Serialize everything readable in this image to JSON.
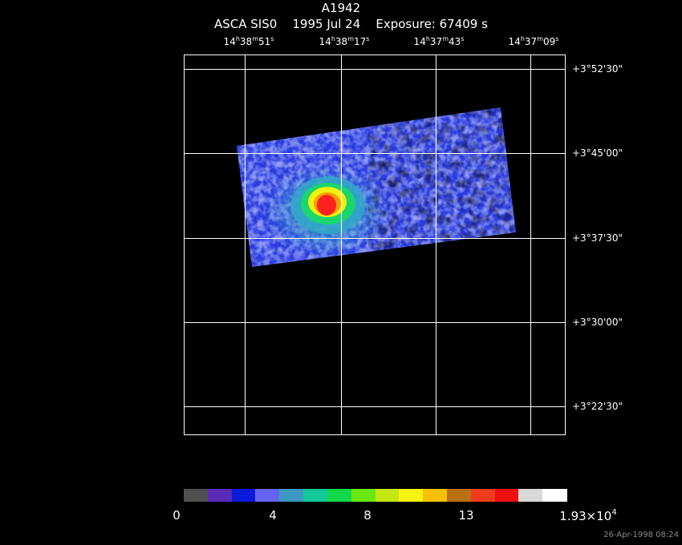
{
  "title": "A1942",
  "subtitle": {
    "instrument": "ASCA SIS0",
    "date": "1995 Jul 24",
    "exposure": "Exposure: 67409 s"
  },
  "ra_ticks": [
    {
      "h": "14",
      "m": "38",
      "s": "51"
    },
    {
      "h": "14",
      "m": "38",
      "s": "17"
    },
    {
      "h": "14",
      "m": "37",
      "s": "43"
    },
    {
      "h": "14",
      "m": "37",
      "s": "09"
    }
  ],
  "ra_units": {
    "h": "h",
    "m": "m",
    "s": "s"
  },
  "dec_ticks": [
    "+3°52'30\"",
    "+3°45'00\"",
    "+3°37'30\"",
    "+3°30'00\"",
    "+3°22'30\""
  ],
  "colorbar": {
    "colors": [
      "#505050",
      "#5a2ab8",
      "#0a1ad8",
      "#6464f0",
      "#3c98c0",
      "#10c898",
      "#10d848",
      "#6ae810",
      "#c4e810",
      "#f4f410",
      "#f8c000",
      "#b87010",
      "#f03c18",
      "#f01010",
      "#d8d8d8",
      "#ffffff"
    ],
    "labels": [
      "0",
      "4",
      "8",
      "13"
    ],
    "max_label": {
      "mantissa": "1.93×10",
      "exponent": "4"
    }
  },
  "image_colors": {
    "grid": "#ffffff",
    "frame": "#ffffff",
    "low": "#505050",
    "blue1": "#2a3adf",
    "blue2": "#5a62ee",
    "cyan": "#30a8c8",
    "green": "#18d868",
    "yellow": "#f4f010",
    "orange": "#f0a000",
    "red": "#ff2020",
    "black": "#000000"
  },
  "timestamp": "26-Apr-1998 08:24"
}
